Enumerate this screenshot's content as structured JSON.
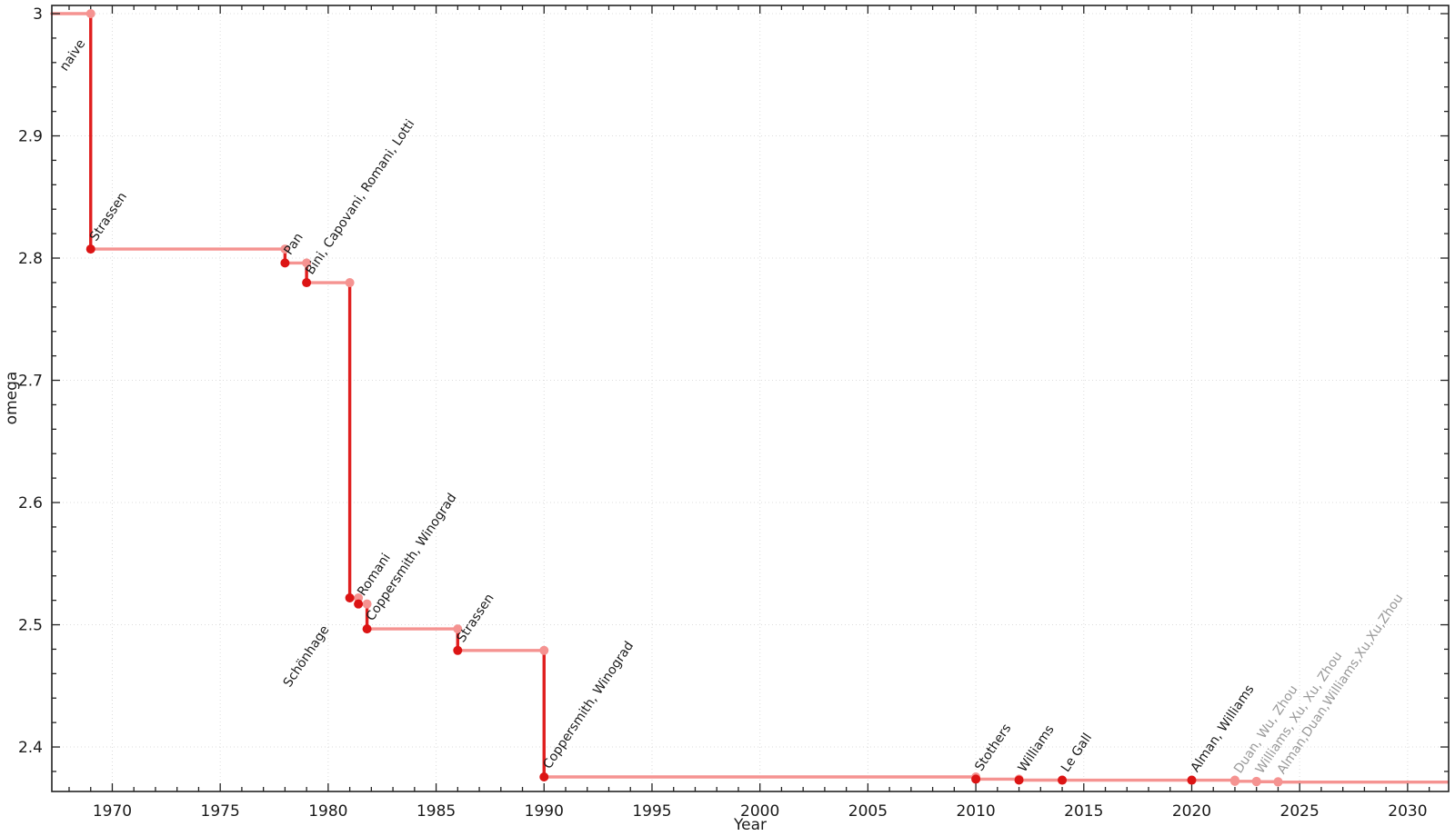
{
  "chart_data": {
    "type": "line",
    "subtype": "step",
    "title": "",
    "xlabel": "Year",
    "ylabel": "omega",
    "xlim": [
      1967.2,
      2031.9
    ],
    "ylim": [
      2.3636,
      3.0067
    ],
    "grid": true,
    "legend": "none",
    "x_major_ticks": [
      1970,
      1975,
      1980,
      1985,
      1990,
      1995,
      2000,
      2005,
      2010,
      2015,
      2020,
      2025,
      2030
    ],
    "x_tick_labels": [
      "1970",
      "1975",
      "1980",
      "1985",
      "1990",
      "1995",
      "2000",
      "2005",
      "2010",
      "2015",
      "2020",
      "2025",
      "2030"
    ],
    "x_minor_step": 1,
    "y_major_ticks": [
      2.4,
      2.5,
      2.6,
      2.7,
      2.8,
      2.9,
      3.0
    ],
    "y_tick_labels": [
      "2.4",
      "2.5",
      "2.6",
      "2.7",
      "2.8",
      "2.9",
      "3"
    ],
    "y_minor_step": 0.02,
    "initial": {
      "omega": 3.0,
      "label": "naive"
    },
    "steps": [
      {
        "year": 1969,
        "omega": 2.8074,
        "label": "Strassen",
        "provisional": false
      },
      {
        "year": 1978,
        "omega": 2.796,
        "label": "Pan",
        "provisional": false
      },
      {
        "year": 1979,
        "omega": 2.7799,
        "label": "Bini, Capovani, Romani, Lotti",
        "provisional": false
      },
      {
        "year": 1981,
        "omega": 2.522,
        "label": "Schönhage",
        "provisional": false
      },
      {
        "year": 1981.4,
        "omega": 2.517,
        "label": "Romani",
        "provisional": false
      },
      {
        "year": 1981.8,
        "omega": 2.4966,
        "label": "Coppersmith, Winograd",
        "provisional": false
      },
      {
        "year": 1986,
        "omega": 2.479,
        "label": "Strassen",
        "provisional": false
      },
      {
        "year": 1990,
        "omega": 2.3755,
        "label": "Coppersmith, Winograd",
        "provisional": false
      },
      {
        "year": 2010,
        "omega": 2.3737,
        "label": "Stothers",
        "provisional": false
      },
      {
        "year": 2012,
        "omega": 2.3729,
        "label": "Williams",
        "provisional": false
      },
      {
        "year": 2014,
        "omega": 2.37287,
        "label": "Le Gall",
        "provisional": false
      },
      {
        "year": 2020,
        "omega": 2.37286,
        "label": "Alman, Williams",
        "provisional": false
      },
      {
        "year": 2022,
        "omega": 2.3719,
        "label": "Duan, Wu, Zhou",
        "provisional": true
      },
      {
        "year": 2023,
        "omega": 2.3716,
        "label": "Williams, Xu, Xu, Zhou",
        "provisional": true
      },
      {
        "year": 2024,
        "omega": 2.3713,
        "label": "Alman,Duan,Williams,Xu,Xu,Zhou",
        "provisional": true
      }
    ],
    "label_rotation_deg": -56,
    "label_offsets": {
      "naive": [
        -27,
        64
      ],
      "Schönhage": [
        -66,
        99
      ],
      "default": [
        6,
        -8
      ]
    },
    "colors": {
      "step_vertical": "#e01f1f",
      "step_horizontal": "#f59391",
      "marker_new": "#dc1414",
      "marker_corner": "#f59391",
      "label_default": "#1a1a1a",
      "label_provisional": "#999999",
      "tick_label": "#1a1a1a",
      "grid": "#dcdcdc",
      "axis": "#232323",
      "background": "#ffffff"
    }
  }
}
